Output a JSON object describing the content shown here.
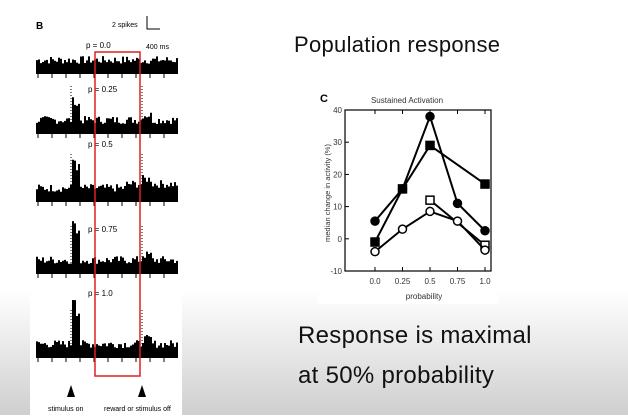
{
  "slide": {
    "title": "Population response",
    "conclusion_line1": "Response is maximal",
    "conclusion_line2": "at 50% probability"
  },
  "panel_b": {
    "label": "B",
    "scale_y": "2 spikes",
    "scale_x": "400 ms",
    "rows": [
      {
        "label": "p = 0.0"
      },
      {
        "label": "p = 0.25"
      },
      {
        "label": "p = 0.5"
      },
      {
        "label": "p = 0.75"
      },
      {
        "label": "p = 1.0"
      }
    ],
    "event_labels": [
      "stimulus on",
      "reward or stimulus off"
    ],
    "highlight_color": "#e02020"
  },
  "chart_data": {
    "type": "line",
    "panel_label": "C",
    "title": "Sustained Activation",
    "xlabel": "probability",
    "ylabel": "median change in activity (%)",
    "x": [
      0.0,
      0.25,
      0.5,
      0.75,
      1.0
    ],
    "xticklabels": [
      "0.0",
      "0.25",
      "0.5",
      "0.75",
      "1.0"
    ],
    "ylim": [
      -10,
      40
    ],
    "yticks": [
      -10,
      0,
      10,
      20,
      30,
      40
    ],
    "series": [
      {
        "marker": "filled-circle",
        "points": [
          [
            0.0,
            5.5
          ],
          [
            0.25,
            15.5
          ],
          [
            0.5,
            38
          ],
          [
            0.75,
            11
          ],
          [
            1.0,
            2.5
          ]
        ]
      },
      {
        "marker": "filled-square",
        "points": [
          [
            0.0,
            -1
          ],
          [
            0.25,
            15.5
          ],
          [
            0.5,
            29
          ],
          [
            1.0,
            17
          ]
        ]
      },
      {
        "marker": "open-square",
        "points": [
          [
            0.5,
            12
          ],
          [
            1.0,
            -2
          ]
        ]
      },
      {
        "marker": "open-circle",
        "points": [
          [
            0.0,
            -4
          ],
          [
            0.25,
            3
          ],
          [
            0.5,
            8.5
          ],
          [
            0.75,
            5.5
          ],
          [
            1.0,
            -3.5
          ]
        ]
      }
    ]
  }
}
